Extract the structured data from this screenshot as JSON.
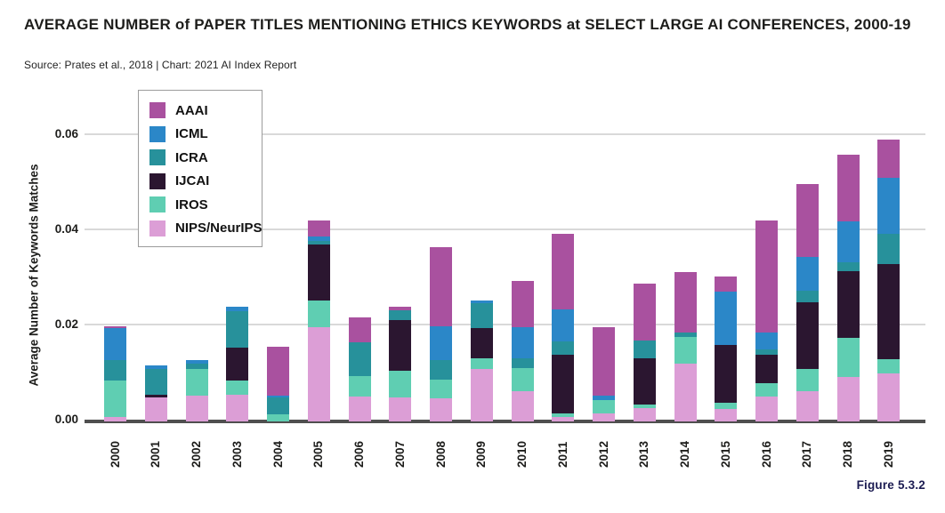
{
  "title": "AVERAGE NUMBER of PAPER TITLES MENTIONING ETHICS KEYWORDS at SELECT LARGE AI CONFERENCES, 2000-19",
  "source": "Source: Prates et al., 2018 | Chart: 2021 AI Index Report",
  "figure_label": "Figure 5.3.2",
  "chart_data": {
    "type": "bar",
    "stacked": true,
    "title": "AVERAGE NUMBER of PAPER TITLES MENTIONING ETHICS KEYWORDS at SELECT LARGE AI CONFERENCES, 2000-19",
    "xlabel": "",
    "ylabel": "Average Number of Keywords Matches",
    "ylim": [
      0,
      0.065
    ],
    "yticks": [
      0,
      0.02,
      0.04,
      0.06
    ],
    "ytick_labels": [
      "0.00",
      "0.02",
      "0.04",
      "0.06"
    ],
    "grid": true,
    "legend_position": "top-left",
    "stack_order_bottom_to_top": [
      "NIPS/NeurIPS",
      "IROS",
      "IJCAI",
      "ICRA",
      "ICML",
      "AAAI"
    ],
    "categories": [
      "2000",
      "2001",
      "2002",
      "2003",
      "2004",
      "2005",
      "2006",
      "2007",
      "2008",
      "2009",
      "2010",
      "2011",
      "2012",
      "2013",
      "2014",
      "2015",
      "2016",
      "2017",
      "2018",
      "2019"
    ],
    "series": [
      {
        "name": "AAAI",
        "color": "#a9519f",
        "values": [
          0.0005,
          0,
          0,
          0,
          0.0103,
          0.0034,
          0.0053,
          0.0008,
          0.0168,
          0,
          0.0098,
          0.0159,
          0.0145,
          0.012,
          0.0127,
          0.0033,
          0.0236,
          0.0154,
          0.014,
          0.008
        ]
      },
      {
        "name": "ICML",
        "color": "#2b87c8",
        "values": [
          0.0066,
          0.0008,
          0.0008,
          0.0008,
          0.0004,
          0.0009,
          0,
          0,
          0.007,
          0.0006,
          0.0064,
          0.0069,
          0.0008,
          0,
          0,
          0.0112,
          0.0035,
          0.0071,
          0.0086,
          0.0119
        ]
      },
      {
        "name": "ICRA",
        "color": "#27919b",
        "values": [
          0.0044,
          0.0055,
          0.0011,
          0.0078,
          0.0036,
          0.0008,
          0.0072,
          0.0021,
          0.0042,
          0.0053,
          0.0022,
          0.0028,
          0,
          0.0036,
          0.001,
          0,
          0.0012,
          0.0024,
          0.0019,
          0.0063
        ]
      },
      {
        "name": "IJCAI",
        "color": "#2b1630",
        "values": [
          0,
          0.0005,
          0,
          0.0069,
          0,
          0.0117,
          0,
          0.0106,
          0,
          0.0062,
          0,
          0.0122,
          0,
          0.0099,
          0,
          0.0121,
          0.0059,
          0.0142,
          0.014,
          0.02
        ]
      },
      {
        "name": "IROS",
        "color": "#5fceb2",
        "values": [
          0.0077,
          0,
          0.0056,
          0.003,
          0.0011,
          0.0057,
          0.0042,
          0.0056,
          0.0039,
          0.0024,
          0.0048,
          0.0009,
          0.0028,
          0.0006,
          0.0056,
          0.0014,
          0.0028,
          0.0046,
          0.0084,
          0.0031
        ]
      },
      {
        "name": "NIPS/NeurIPS",
        "color": "#dc9ed6",
        "values": [
          0.0005,
          0.0047,
          0.005,
          0.0052,
          0,
          0.0194,
          0.0049,
          0.0047,
          0.0045,
          0.0106,
          0.006,
          0.0005,
          0.0014,
          0.0025,
          0.0118,
          0.0022,
          0.0049,
          0.006,
          0.0089,
          0.0097
        ]
      }
    ],
    "colors": {
      "grid": "#d9d9d9",
      "axis": "#4f4f4f",
      "text": "#1d1d1b",
      "figure_caption": "#1c1c52"
    }
  }
}
